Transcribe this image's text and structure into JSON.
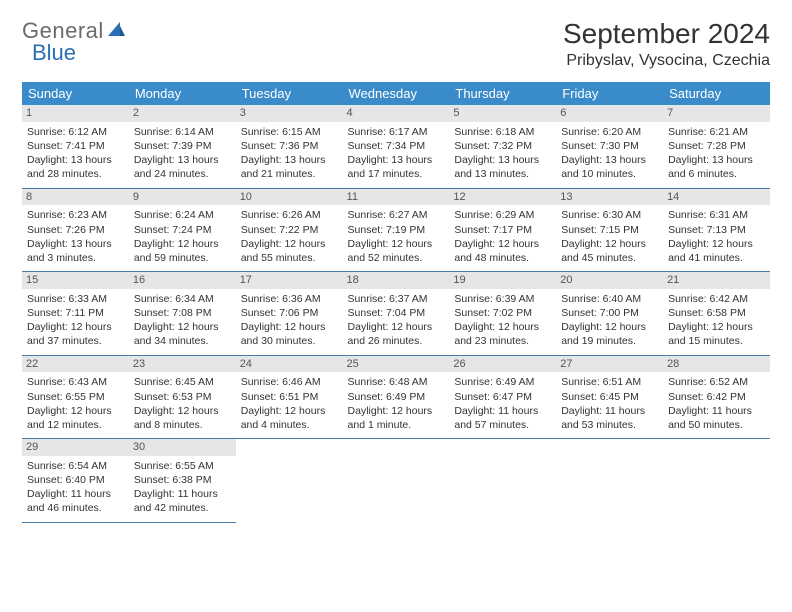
{
  "logo": {
    "text1": "General",
    "text2": "Blue"
  },
  "title": "September 2024",
  "location": "Pribyslav, Vysocina, Czechia",
  "colors": {
    "header_bg": "#3a8bca",
    "header_text": "#ffffff",
    "daynum_bg": "#e6e6e6",
    "row_border": "#4a7ba8",
    "logo_gray": "#6b6b6b",
    "logo_blue": "#2a6fb5"
  },
  "weekdays": [
    "Sunday",
    "Monday",
    "Tuesday",
    "Wednesday",
    "Thursday",
    "Friday",
    "Saturday"
  ],
  "weeks": [
    [
      {
        "day": "1",
        "sunrise": "Sunrise: 6:12 AM",
        "sunset": "Sunset: 7:41 PM",
        "d1": "Daylight: 13 hours",
        "d2": "and 28 minutes."
      },
      {
        "day": "2",
        "sunrise": "Sunrise: 6:14 AM",
        "sunset": "Sunset: 7:39 PM",
        "d1": "Daylight: 13 hours",
        "d2": "and 24 minutes."
      },
      {
        "day": "3",
        "sunrise": "Sunrise: 6:15 AM",
        "sunset": "Sunset: 7:36 PM",
        "d1": "Daylight: 13 hours",
        "d2": "and 21 minutes."
      },
      {
        "day": "4",
        "sunrise": "Sunrise: 6:17 AM",
        "sunset": "Sunset: 7:34 PM",
        "d1": "Daylight: 13 hours",
        "d2": "and 17 minutes."
      },
      {
        "day": "5",
        "sunrise": "Sunrise: 6:18 AM",
        "sunset": "Sunset: 7:32 PM",
        "d1": "Daylight: 13 hours",
        "d2": "and 13 minutes."
      },
      {
        "day": "6",
        "sunrise": "Sunrise: 6:20 AM",
        "sunset": "Sunset: 7:30 PM",
        "d1": "Daylight: 13 hours",
        "d2": "and 10 minutes."
      },
      {
        "day": "7",
        "sunrise": "Sunrise: 6:21 AM",
        "sunset": "Sunset: 7:28 PM",
        "d1": "Daylight: 13 hours",
        "d2": "and 6 minutes."
      }
    ],
    [
      {
        "day": "8",
        "sunrise": "Sunrise: 6:23 AM",
        "sunset": "Sunset: 7:26 PM",
        "d1": "Daylight: 13 hours",
        "d2": "and 3 minutes."
      },
      {
        "day": "9",
        "sunrise": "Sunrise: 6:24 AM",
        "sunset": "Sunset: 7:24 PM",
        "d1": "Daylight: 12 hours",
        "d2": "and 59 minutes."
      },
      {
        "day": "10",
        "sunrise": "Sunrise: 6:26 AM",
        "sunset": "Sunset: 7:22 PM",
        "d1": "Daylight: 12 hours",
        "d2": "and 55 minutes."
      },
      {
        "day": "11",
        "sunrise": "Sunrise: 6:27 AM",
        "sunset": "Sunset: 7:19 PM",
        "d1": "Daylight: 12 hours",
        "d2": "and 52 minutes."
      },
      {
        "day": "12",
        "sunrise": "Sunrise: 6:29 AM",
        "sunset": "Sunset: 7:17 PM",
        "d1": "Daylight: 12 hours",
        "d2": "and 48 minutes."
      },
      {
        "day": "13",
        "sunrise": "Sunrise: 6:30 AM",
        "sunset": "Sunset: 7:15 PM",
        "d1": "Daylight: 12 hours",
        "d2": "and 45 minutes."
      },
      {
        "day": "14",
        "sunrise": "Sunrise: 6:31 AM",
        "sunset": "Sunset: 7:13 PM",
        "d1": "Daylight: 12 hours",
        "d2": "and 41 minutes."
      }
    ],
    [
      {
        "day": "15",
        "sunrise": "Sunrise: 6:33 AM",
        "sunset": "Sunset: 7:11 PM",
        "d1": "Daylight: 12 hours",
        "d2": "and 37 minutes."
      },
      {
        "day": "16",
        "sunrise": "Sunrise: 6:34 AM",
        "sunset": "Sunset: 7:08 PM",
        "d1": "Daylight: 12 hours",
        "d2": "and 34 minutes."
      },
      {
        "day": "17",
        "sunrise": "Sunrise: 6:36 AM",
        "sunset": "Sunset: 7:06 PM",
        "d1": "Daylight: 12 hours",
        "d2": "and 30 minutes."
      },
      {
        "day": "18",
        "sunrise": "Sunrise: 6:37 AM",
        "sunset": "Sunset: 7:04 PM",
        "d1": "Daylight: 12 hours",
        "d2": "and 26 minutes."
      },
      {
        "day": "19",
        "sunrise": "Sunrise: 6:39 AM",
        "sunset": "Sunset: 7:02 PM",
        "d1": "Daylight: 12 hours",
        "d2": "and 23 minutes."
      },
      {
        "day": "20",
        "sunrise": "Sunrise: 6:40 AM",
        "sunset": "Sunset: 7:00 PM",
        "d1": "Daylight: 12 hours",
        "d2": "and 19 minutes."
      },
      {
        "day": "21",
        "sunrise": "Sunrise: 6:42 AM",
        "sunset": "Sunset: 6:58 PM",
        "d1": "Daylight: 12 hours",
        "d2": "and 15 minutes."
      }
    ],
    [
      {
        "day": "22",
        "sunrise": "Sunrise: 6:43 AM",
        "sunset": "Sunset: 6:55 PM",
        "d1": "Daylight: 12 hours",
        "d2": "and 12 minutes."
      },
      {
        "day": "23",
        "sunrise": "Sunrise: 6:45 AM",
        "sunset": "Sunset: 6:53 PM",
        "d1": "Daylight: 12 hours",
        "d2": "and 8 minutes."
      },
      {
        "day": "24",
        "sunrise": "Sunrise: 6:46 AM",
        "sunset": "Sunset: 6:51 PM",
        "d1": "Daylight: 12 hours",
        "d2": "and 4 minutes."
      },
      {
        "day": "25",
        "sunrise": "Sunrise: 6:48 AM",
        "sunset": "Sunset: 6:49 PM",
        "d1": "Daylight: 12 hours",
        "d2": "and 1 minute."
      },
      {
        "day": "26",
        "sunrise": "Sunrise: 6:49 AM",
        "sunset": "Sunset: 6:47 PM",
        "d1": "Daylight: 11 hours",
        "d2": "and 57 minutes."
      },
      {
        "day": "27",
        "sunrise": "Sunrise: 6:51 AM",
        "sunset": "Sunset: 6:45 PM",
        "d1": "Daylight: 11 hours",
        "d2": "and 53 minutes."
      },
      {
        "day": "28",
        "sunrise": "Sunrise: 6:52 AM",
        "sunset": "Sunset: 6:42 PM",
        "d1": "Daylight: 11 hours",
        "d2": "and 50 minutes."
      }
    ],
    [
      {
        "day": "29",
        "sunrise": "Sunrise: 6:54 AM",
        "sunset": "Sunset: 6:40 PM",
        "d1": "Daylight: 11 hours",
        "d2": "and 46 minutes."
      },
      {
        "day": "30",
        "sunrise": "Sunrise: 6:55 AM",
        "sunset": "Sunset: 6:38 PM",
        "d1": "Daylight: 11 hours",
        "d2": "and 42 minutes."
      },
      null,
      null,
      null,
      null,
      null
    ]
  ]
}
